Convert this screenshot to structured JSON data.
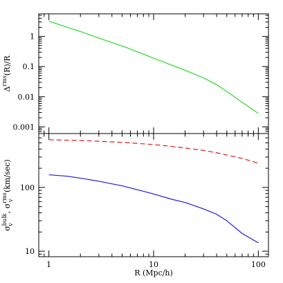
{
  "chart_data": [
    {
      "type": "line",
      "xscale": "log",
      "yscale": "log",
      "xlim": [
        0.8,
        125
      ],
      "ylim": [
        0.0006,
        5.6
      ],
      "xticks": [
        1,
        10,
        100
      ],
      "yticks": [
        0.001,
        0.01,
        0.1,
        1
      ],
      "ytick_labels": [
        "0.001",
        "0.01",
        "0.1",
        "1"
      ],
      "ylabel": {
        "base": "Δ",
        "sup": "rms",
        "tail": "(R)/R"
      },
      "series": [
        {
          "color": "#2bd82b",
          "dash": "solid",
          "x": [
            1,
            1.5,
            2,
            3,
            5,
            7,
            10,
            15,
            20,
            30,
            40,
            50,
            70,
            100
          ],
          "y": [
            3.2,
            2.0,
            1.45,
            0.88,
            0.48,
            0.31,
            0.19,
            0.11,
            0.075,
            0.042,
            0.025,
            0.015,
            0.0065,
            0.0028
          ]
        }
      ]
    },
    {
      "type": "line",
      "xscale": "log",
      "yscale": "log",
      "xlim": [
        0.8,
        125
      ],
      "ylim": [
        8.2,
        700
      ],
      "xticks": [
        1,
        10,
        100
      ],
      "yticks": [
        10,
        100
      ],
      "ytick_labels": [
        "10",
        "100"
      ],
      "xtick_labels": [
        "1",
        "10",
        "100"
      ],
      "xlabel": "R (Mpc/h)",
      "ylabel": {
        "parts": [
          {
            "base": "σ",
            "sub": "v",
            "sup": "bulk"
          },
          {
            "text": ", "
          },
          {
            "base": "σ",
            "sub": "v",
            "sup": "rms"
          },
          {
            "text": "  (km/sec)"
          }
        ]
      },
      "series": [
        {
          "color": "#e01818",
          "dash": "dashed",
          "x": [
            1,
            2,
            3,
            5,
            7,
            10,
            15,
            20,
            30,
            40,
            50,
            70,
            100
          ],
          "y": [
            560,
            545,
            530,
            510,
            490,
            470,
            440,
            415,
            380,
            350,
            322,
            285,
            240
          ]
        },
        {
          "color": "#1a1ae0",
          "dash": "solid",
          "x": [
            1,
            1.5,
            2,
            3,
            5,
            7,
            10,
            15,
            20,
            30,
            40,
            50,
            70,
            100
          ],
          "y": [
            158,
            150,
            140,
            125,
            106,
            92,
            79,
            65,
            58,
            46,
            38,
            30,
            19,
            13.5
          ]
        }
      ]
    }
  ]
}
